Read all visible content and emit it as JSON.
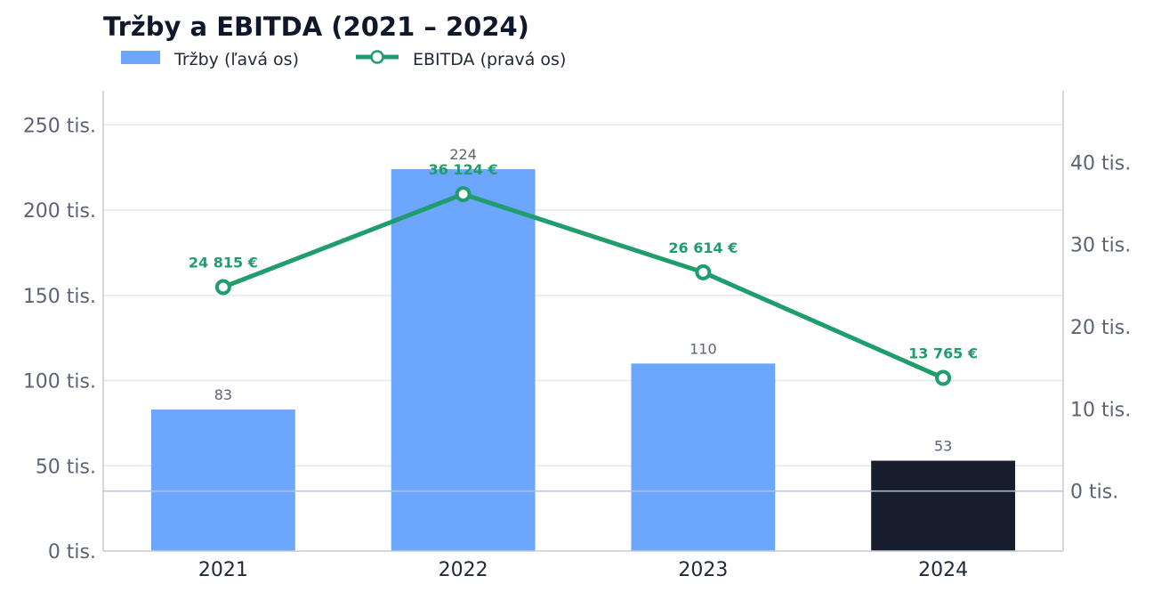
{
  "chart_data": {
    "type": "bar",
    "title": "Tržby a EBITDA (2021 – 2024)",
    "categories": [
      "2021",
      "2022",
      "2023",
      "2024"
    ],
    "series": [
      {
        "name": "Tržby (ľavá os)",
        "type": "bar",
        "axis": "left",
        "values": [
          83,
          224,
          110,
          53
        ],
        "value_labels": [
          "83",
          "224",
          "110",
          "53"
        ],
        "highlight_index": 3
      },
      {
        "name": "EBITDA (pravá os)",
        "type": "line",
        "axis": "right",
        "values": [
          24815,
          36124,
          26614,
          13765
        ],
        "value_labels": [
          "24 815 €",
          "36 124 €",
          "26 614 €",
          "13 765 €"
        ]
      }
    ],
    "left_axis": {
      "ylim": [
        0,
        270
      ],
      "ticks": [
        0,
        50,
        100,
        150,
        200,
        250
      ],
      "tick_labels": [
        "0 tis.",
        "50 tis.",
        "100 tis.",
        "150 tis.",
        "200 tis.",
        "250 tis."
      ]
    },
    "right_axis": {
      "ylim": [
        -7300,
        48700
      ],
      "ticks": [
        0,
        10000,
        20000,
        30000,
        40000
      ],
      "tick_labels": [
        "0 tis.",
        "10 tis.",
        "20 tis.",
        "30 tis.",
        "40 tis."
      ]
    },
    "grid": true,
    "legend_position": "top-left",
    "colors": {
      "bar": "#6ca6fd",
      "bar_highlight": "#161e2e",
      "line": "#1f9d6c",
      "grid": "#e5e8ec",
      "axis": "#c8ccd2",
      "zero_line": "#b7c1d6"
    }
  }
}
